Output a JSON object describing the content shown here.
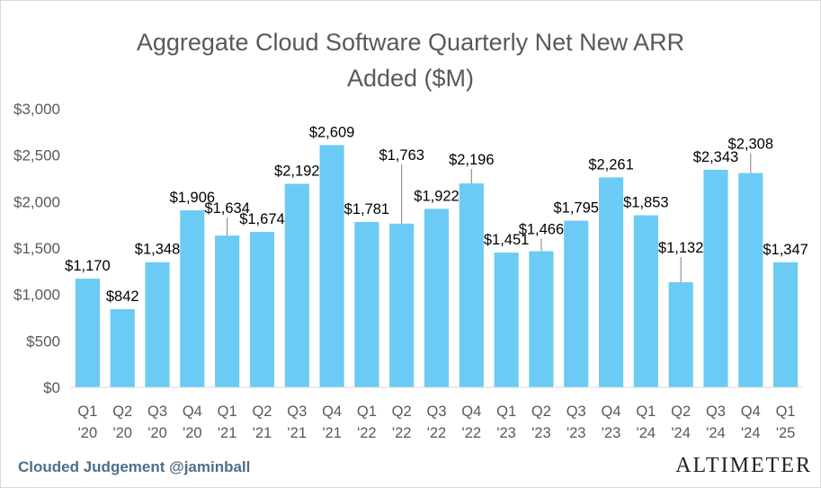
{
  "chart_data": {
    "type": "bar",
    "title_line1": "Aggregate Cloud Software Quarterly Net New ARR",
    "title_line2": "Added ($M)",
    "categories": [
      [
        "Q1",
        "'20"
      ],
      [
        "Q2",
        "'20"
      ],
      [
        "Q3",
        "'20"
      ],
      [
        "Q4",
        "'20"
      ],
      [
        "Q1",
        "'21"
      ],
      [
        "Q2",
        "'21"
      ],
      [
        "Q3",
        "'21"
      ],
      [
        "Q4",
        "'21"
      ],
      [
        "Q1",
        "'22"
      ],
      [
        "Q2",
        "'22"
      ],
      [
        "Q3",
        "'22"
      ],
      [
        "Q4",
        "'22"
      ],
      [
        "Q1",
        "'23"
      ],
      [
        "Q2",
        "'23"
      ],
      [
        "Q3",
        "'23"
      ],
      [
        "Q4",
        "'23"
      ],
      [
        "Q1",
        "'24"
      ],
      [
        "Q2",
        "'24"
      ],
      [
        "Q3",
        "'24"
      ],
      [
        "Q4",
        "'24"
      ],
      [
        "Q1",
        "'25"
      ]
    ],
    "values": [
      1170,
      842,
      1348,
      1906,
      1634,
      1674,
      2192,
      2609,
      1781,
      1763,
      1922,
      2196,
      1451,
      1466,
      1795,
      2261,
      1853,
      1132,
      2343,
      2308,
      1347
    ],
    "value_labels": [
      "$1,170",
      "$842",
      "$1,348",
      "$1,906",
      "$1,634",
      "$1,674",
      "$2,192",
      "$2,609",
      "$1,781",
      "$1,763",
      "$1,922",
      "$2,196",
      "$1,451",
      "$1,466",
      "$1,795",
      "$2,261",
      "$1,853",
      "$1,132",
      "$2,343",
      "$2,308",
      "$1,347"
    ],
    "ylim": [
      0,
      3000
    ],
    "yticks": [
      0,
      500,
      1000,
      1500,
      2000,
      2500,
      3000
    ],
    "ytick_labels": [
      "$0",
      "$500",
      "$1,000",
      "$1,500",
      "$2,000",
      "$2,500",
      "$3,000"
    ],
    "grid": false,
    "bar_color": "#6ccbf4",
    "label_color": "#000000",
    "axis_text_color": "#595959"
  },
  "footer": {
    "attribution": "Clouded Judgement @jaminball",
    "brand": "ALTIMETER"
  }
}
